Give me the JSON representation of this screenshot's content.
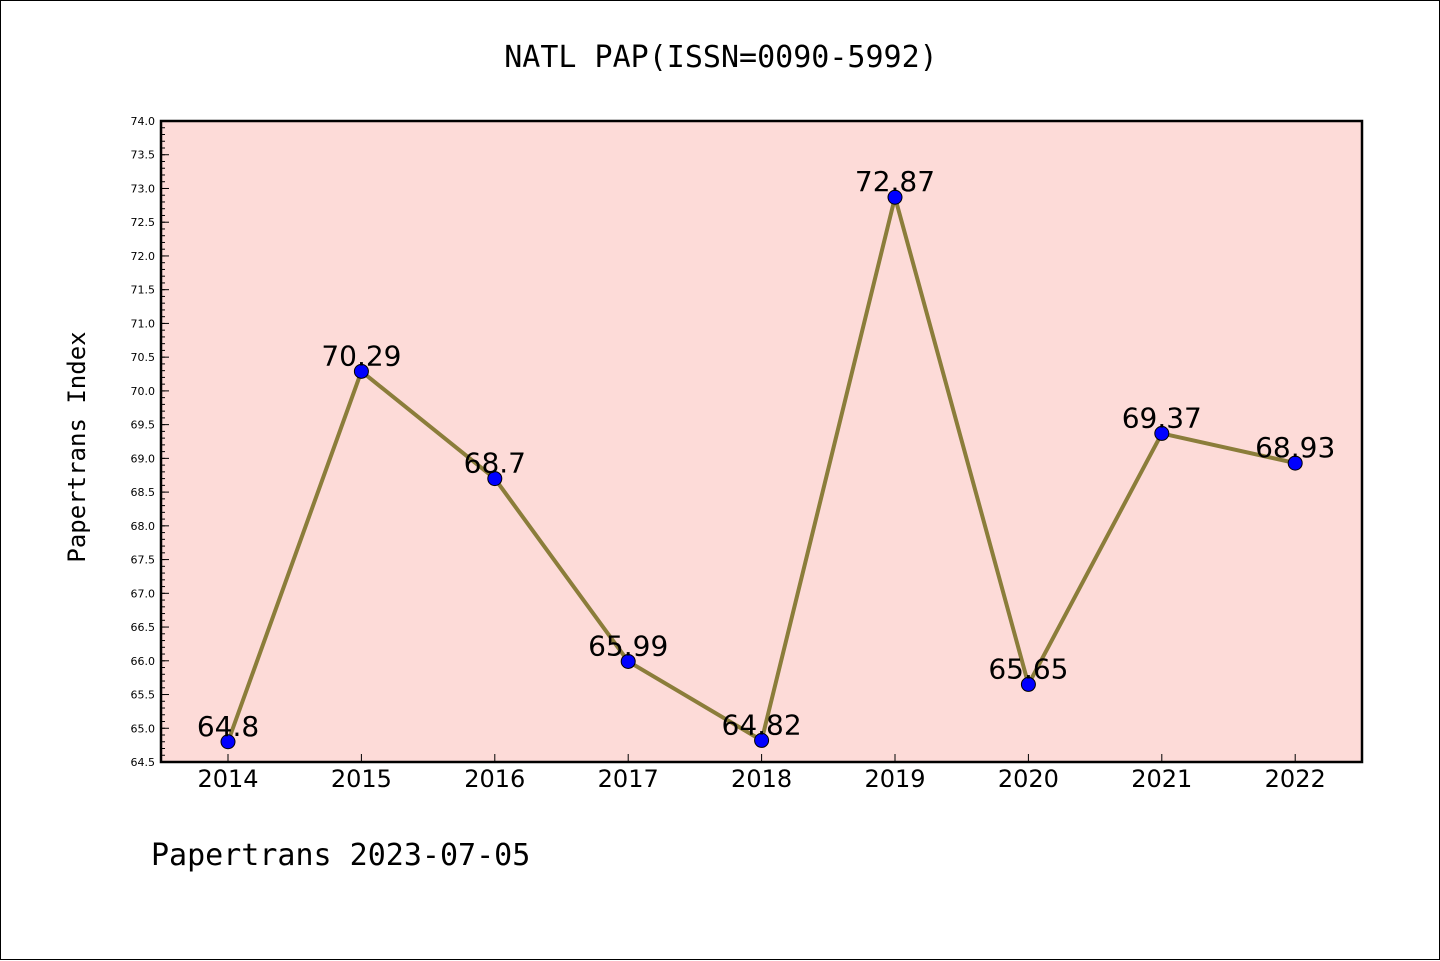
{
  "chart_data": {
    "type": "line",
    "title": "NATL PAP(ISSN=0090-5992)",
    "ylabel": "Papertrans Index",
    "xlabel": "",
    "categories": [
      "2014",
      "2015",
      "2016",
      "2017",
      "2018",
      "2019",
      "2020",
      "2021",
      "2022"
    ],
    "values": [
      64.8,
      70.29,
      68.7,
      65.99,
      64.82,
      72.87,
      65.65,
      69.37,
      68.93
    ],
    "data_labels": [
      "64.8",
      "70.29",
      "68.7",
      "65.99",
      "64.82",
      "72.87",
      "65.65",
      "69.37",
      "68.93"
    ],
    "ylim": [
      64.5,
      74.0
    ],
    "yticks": [
      "64.5",
      "65.0",
      "65.5",
      "66.0",
      "66.5",
      "67.0",
      "67.5",
      "68.0",
      "68.5",
      "69.0",
      "69.5",
      "70.0",
      "70.5",
      "71.0",
      "71.5",
      "72.0",
      "72.5",
      "73.0",
      "73.5",
      "74.0"
    ],
    "grid": false,
    "colors": {
      "plot_background": "#fddbd8",
      "line": "#8b7d3a",
      "marker": "#0000ff"
    },
    "footer": "Papertrans 2023-07-05"
  }
}
